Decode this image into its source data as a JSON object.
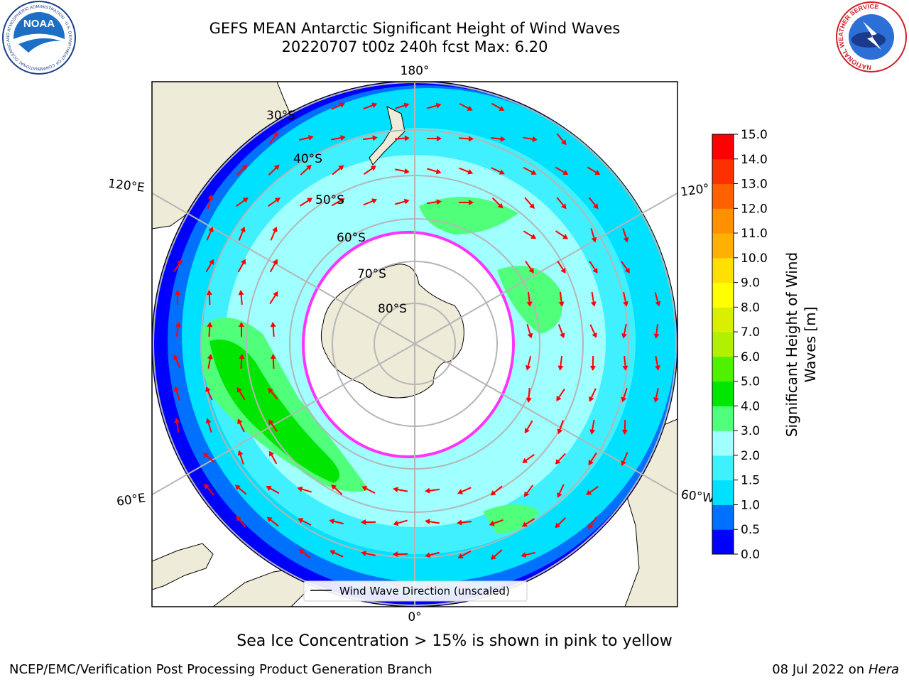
{
  "title": {
    "line1": "GEFS MEAN Antarctic Significant Height of Wind Waves",
    "line2": "20220707 t00z 240h fcst   Max: 6.20"
  },
  "logos": {
    "noaa_text": "NOAA",
    "noaa_ring_text": "NATIONAL OCEANIC AND ATMOSPHERIC ADMINISTRATION · U.S. DEPARTMENT OF COMMERCE",
    "nws_ring_text": "NATIONAL WEATHER SERVICE"
  },
  "map": {
    "longitude_labels": {
      "top": "180°",
      "bottom": "0°",
      "upper_left": "120°E",
      "lower_left": "60°E",
      "upper_right": "120°",
      "lower_right": "60°W"
    },
    "latitude_labels": [
      "30°S",
      "40°S",
      "50°S",
      "60°S",
      "70°S",
      "80°S"
    ],
    "legend_label": "Wind Wave Direction (unscaled)",
    "colors": {
      "land": "#efebd9",
      "ice": "#ffffff",
      "gridline": "#b5b5b5",
      "arrow": "#ff0000",
      "ice_edge": "#ff33ff"
    }
  },
  "colorbar": {
    "label": "Significant Height of Wind Waves [m]",
    "ticks": [
      "0.0",
      "0.5",
      "1.0",
      "1.5",
      "2.0",
      "3.0",
      "4.0",
      "5.0",
      "6.0",
      "7.0",
      "8.0",
      "9.0",
      "10.0",
      "11.0",
      "12.0",
      "13.0",
      "14.0",
      "15.0"
    ],
    "colors": [
      "#0000ff",
      "#0070ff",
      "#00e0ff",
      "#40f0ff",
      "#a0ffff",
      "#50ff7a",
      "#00e600",
      "#50f000",
      "#b0f000",
      "#d8f000",
      "#ffff00",
      "#ffe000",
      "#ffb000",
      "#ff9000",
      "#ff6000",
      "#ff3000",
      "#ff0000"
    ]
  },
  "footer": {
    "subtitle": "Sea Ice Concentration > 15% is shown in pink to yellow",
    "left": "NCEP/EMC/Verification Post Processing Product Generation Branch",
    "right_prefix": "08 Jul 2022 on ",
    "right_host": "Hera"
  }
}
